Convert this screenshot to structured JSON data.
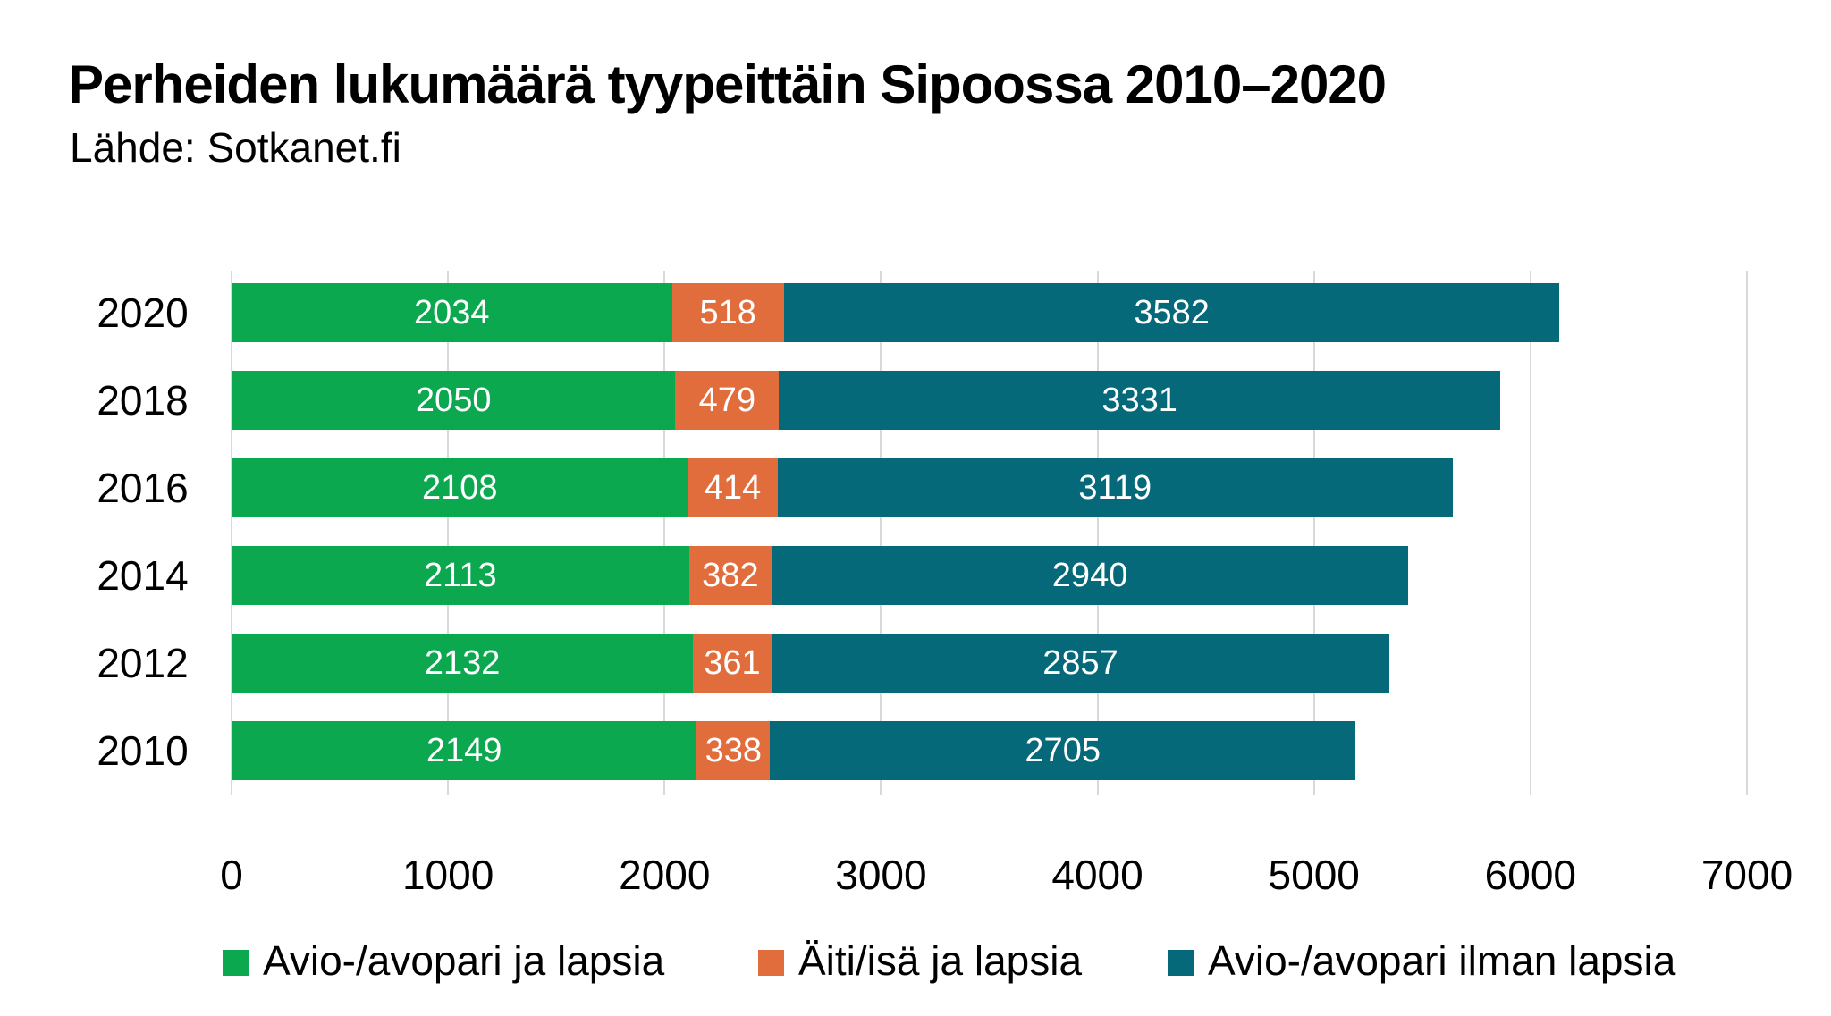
{
  "header": {
    "title": "Perheiden lukumäärä tyypeittäin Sipoossa 2010–2020",
    "source": "Lähde: Sotkanet.fi"
  },
  "colors": {
    "couple_with_children": "#0ba84f",
    "single_parent_with_children": "#e26d3c",
    "couple_without_children": "#05697a",
    "gridline": "#d9d9d9",
    "bar_label": "#ffffff",
    "text": "#000000",
    "background": "#ffffff"
  },
  "chart_data": {
    "type": "bar",
    "orientation": "horizontal",
    "stacked": true,
    "title": "Perheiden lukumäärä tyypeittäin Sipoossa 2010–2020",
    "subtitle": "Lähde: Sotkanet.fi",
    "categories": [
      "2020",
      "2018",
      "2016",
      "2014",
      "2012",
      "2010"
    ],
    "series": [
      {
        "id": "couple-with-children",
        "name": "Avio-/avopari ja lapsia",
        "color_key": "couple_with_children",
        "values": [
          2034,
          2050,
          2108,
          2113,
          2132,
          2149
        ]
      },
      {
        "id": "single-parent-with-children",
        "name": "Äiti/isä ja lapsia",
        "color_key": "single_parent_with_children",
        "values": [
          518,
          479,
          414,
          382,
          361,
          338
        ]
      },
      {
        "id": "couple-without-children",
        "name": "Avio-/avopari ilman lapsia",
        "color_key": "couple_without_children",
        "values": [
          3582,
          3331,
          3119,
          2940,
          2857,
          2705
        ]
      }
    ],
    "totals": [
      6134,
      5860,
      5641,
      5435,
      5350,
      5192
    ],
    "xlabel": "",
    "ylabel": "",
    "xlim": [
      0,
      7000
    ],
    "x_ticks": [
      0,
      1000,
      2000,
      3000,
      4000,
      5000,
      6000,
      7000
    ],
    "grid": true,
    "value_labels": "inside-white",
    "legend_position": "bottom"
  }
}
